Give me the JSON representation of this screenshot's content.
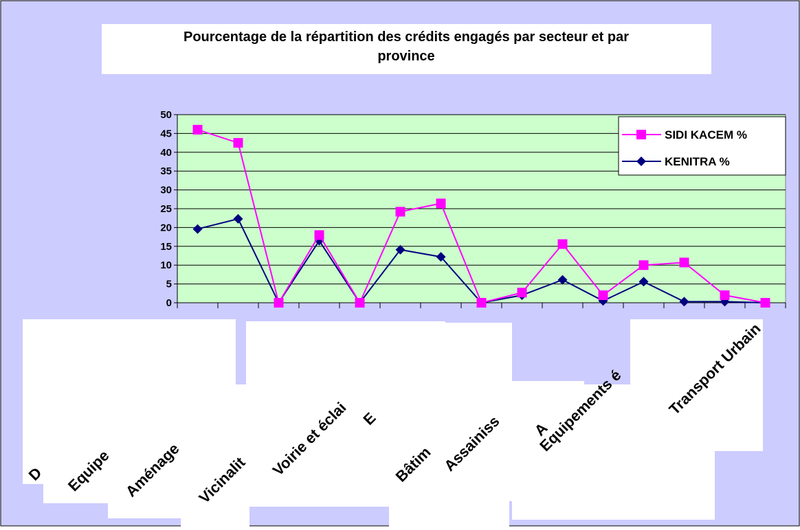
{
  "chart_data": {
    "type": "line",
    "title": "Pourcentage de la répartition des crédits engagés par secteur et par province",
    "categories": [
      "D",
      "Equipe",
      "Aménage",
      "Vicinalit",
      "Voirie et éclai",
      null,
      "E",
      "Bâtim",
      "Assainiss",
      null,
      "A",
      "Equipements é",
      null,
      "Transport Urbain",
      null
    ],
    "series": [
      {
        "name": "SIDI KACEM %",
        "color": "#ff00ff",
        "marker": "square",
        "values": [
          46,
          42.5,
          0,
          18,
          0,
          24.2,
          26.4,
          0,
          2.7,
          15.6,
          2,
          10,
          10.7,
          2,
          0
        ]
      },
      {
        "name": "KENITRA %",
        "color": "#000080",
        "marker": "diamond",
        "values": [
          19.6,
          22.3,
          0,
          16.5,
          0,
          14.1,
          12.2,
          0,
          2,
          6.1,
          0.5,
          5.6,
          0.3,
          0.3,
          0
        ]
      }
    ],
    "ylim": [
      0,
      50
    ],
    "yticks": [
      0,
      5,
      10,
      15,
      20,
      25,
      30,
      35,
      40,
      45,
      50
    ],
    "grid": true,
    "legend": "top-right"
  }
}
